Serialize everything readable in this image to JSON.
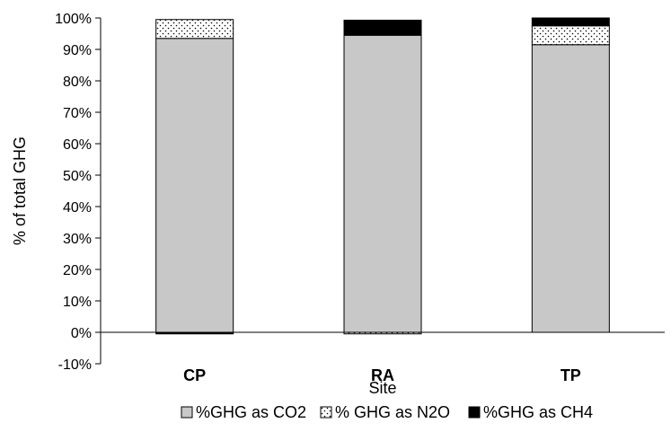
{
  "chart_data": {
    "type": "bar",
    "stacked": true,
    "categories": [
      "CP",
      "RA",
      "TP"
    ],
    "series": [
      {
        "name": "%GHG as CO2",
        "values": [
          93.5,
          94.5,
          91.5
        ],
        "color": "#c8c8c8",
        "pattern": "solid"
      },
      {
        "name": "% GHG as N2O",
        "values": [
          6.0,
          -0.5,
          6.0
        ],
        "color": "#ffffff",
        "pattern": "dotted"
      },
      {
        "name": "%GHG as CH4",
        "values": [
          -0.5,
          4.8,
          2.5
        ],
        "color": "#000000",
        "pattern": "solid"
      }
    ],
    "ylabel": "% of total GHG",
    "xlabel": "Site",
    "ylim": [
      -10,
      100
    ],
    "yticks": [
      "-10%",
      "0%",
      "10%",
      "20%",
      "30%",
      "40%",
      "50%",
      "60%",
      "70%",
      "80%",
      "90%",
      "100%"
    ],
    "grid": false,
    "legend_position": "bottom"
  }
}
